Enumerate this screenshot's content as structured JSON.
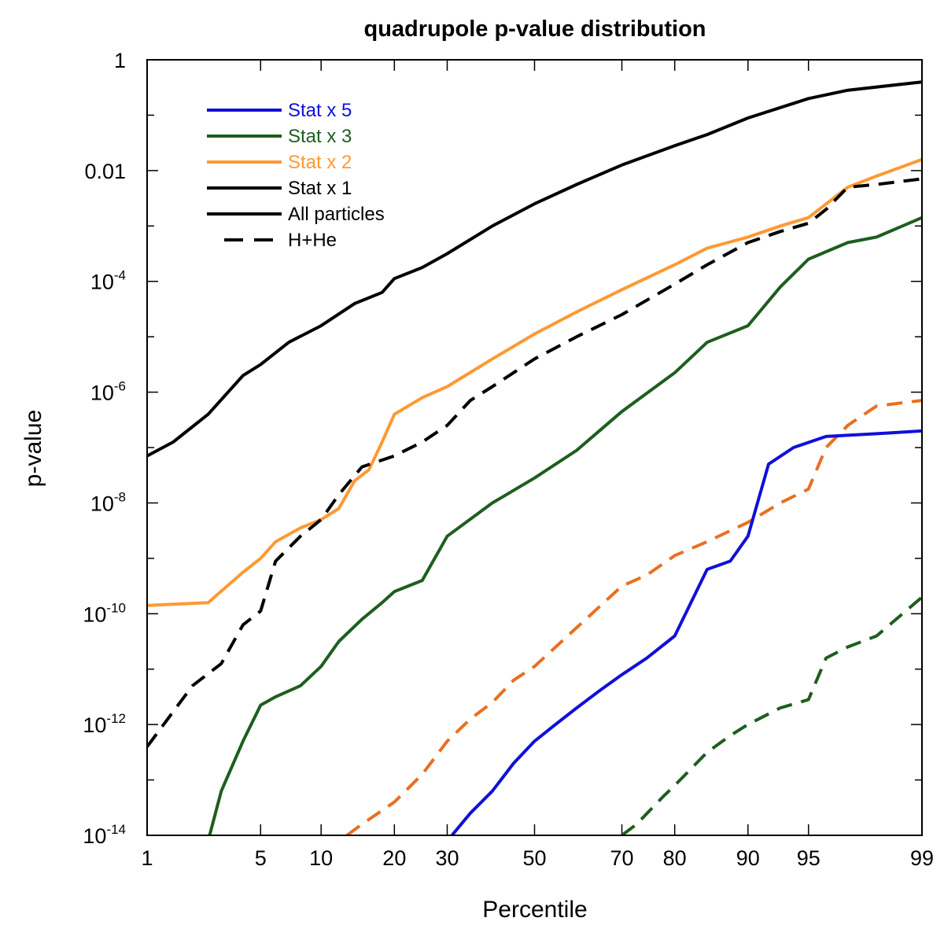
{
  "chart_data": {
    "type": "line",
    "title": "quadrupole p-value distribution",
    "xlabel": "Percentile",
    "ylabel": "p-value",
    "xscale": "normal-probability",
    "yscale": "log",
    "xlim": [
      1,
      99
    ],
    "ylim_log10": [
      -14,
      0
    ],
    "x_ticks": [
      {
        "value": 1,
        "label": "1"
      },
      {
        "value": 5,
        "label": "5"
      },
      {
        "value": 10,
        "label": "10"
      },
      {
        "value": 20,
        "label": "20"
      },
      {
        "value": 30,
        "label": "30"
      },
      {
        "value": 50,
        "label": "50"
      },
      {
        "value": 70,
        "label": "70"
      },
      {
        "value": 80,
        "label": "80"
      },
      {
        "value": 90,
        "label": "90"
      },
      {
        "value": 95,
        "label": "95"
      },
      {
        "value": 99,
        "label": "99"
      }
    ],
    "y_ticks": [
      {
        "log10": 0,
        "base": "1",
        "exp": ""
      },
      {
        "log10": -2,
        "base": "0.01",
        "exp": ""
      },
      {
        "log10": -4,
        "base": "10",
        "exp": "-4"
      },
      {
        "log10": -6,
        "base": "10",
        "exp": "-6"
      },
      {
        "log10": -8,
        "base": "10",
        "exp": "-8"
      },
      {
        "log10": -10,
        "base": "10",
        "exp": "-10"
      },
      {
        "log10": -12,
        "base": "10",
        "exp": "-12"
      },
      {
        "log10": -14,
        "base": "10",
        "exp": "-14"
      }
    ],
    "legend_position": "top-left",
    "legend": [
      {
        "label": "Stat x 5",
        "color": "#1010d8",
        "style": "solid",
        "text_color": "#1010d8"
      },
      {
        "label": "Stat x 3",
        "color": "#1e5e1e",
        "style": "solid",
        "text_color": "#1e5e1e"
      },
      {
        "label": "Stat x 2",
        "color": "#ff9933",
        "style": "solid",
        "text_color": "#ff9933"
      },
      {
        "label": "Stat x 1",
        "color": "#000000",
        "style": "solid",
        "text_color": "#000000"
      },
      {
        "label": "All particles",
        "color": "#000000",
        "style": "solid",
        "text_color": "#000000"
      },
      {
        "label": "H+He",
        "color": "#000000",
        "style": "dashed",
        "text_color": "#000000"
      }
    ],
    "series": [
      {
        "name": "Stat x 1 (All particles)",
        "color": "#000000",
        "style": "solid",
        "points": [
          [
            1,
            -7.15
          ],
          [
            1.5,
            -6.9
          ],
          [
            2.5,
            -6.4
          ],
          [
            4,
            -5.7
          ],
          [
            5,
            -5.5
          ],
          [
            7,
            -5.1
          ],
          [
            10,
            -4.8
          ],
          [
            14,
            -4.4
          ],
          [
            18,
            -4.2
          ],
          [
            20,
            -3.95
          ],
          [
            25,
            -3.75
          ],
          [
            30,
            -3.5
          ],
          [
            40,
            -3.0
          ],
          [
            50,
            -2.6
          ],
          [
            60,
            -2.25
          ],
          [
            70,
            -1.9
          ],
          [
            80,
            -1.55
          ],
          [
            85,
            -1.35
          ],
          [
            90,
            -1.05
          ],
          [
            95,
            -0.7
          ],
          [
            97,
            -0.55
          ],
          [
            99,
            -0.4
          ]
        ]
      },
      {
        "name": "Stat x 2",
        "color": "#ff9933",
        "style": "solid",
        "points": [
          [
            1,
            -9.85
          ],
          [
            2.5,
            -9.8
          ],
          [
            4,
            -9.25
          ],
          [
            5,
            -9.0
          ],
          [
            6,
            -8.7
          ],
          [
            8,
            -8.45
          ],
          [
            10,
            -8.3
          ],
          [
            12,
            -8.1
          ],
          [
            14,
            -7.6
          ],
          [
            16,
            -7.4
          ],
          [
            18,
            -6.9
          ],
          [
            20,
            -6.4
          ],
          [
            25,
            -6.1
          ],
          [
            30,
            -5.9
          ],
          [
            40,
            -5.4
          ],
          [
            50,
            -4.95
          ],
          [
            60,
            -4.55
          ],
          [
            70,
            -4.15
          ],
          [
            80,
            -3.7
          ],
          [
            85,
            -3.4
          ],
          [
            90,
            -3.2
          ],
          [
            93,
            -3.0
          ],
          [
            95,
            -2.85
          ],
          [
            97,
            -2.3
          ],
          [
            98,
            -2.1
          ],
          [
            99,
            -1.8
          ]
        ]
      },
      {
        "name": "H+He (All particles)",
        "color": "#000000",
        "style": "dashed",
        "points": [
          [
            1,
            -12.4
          ],
          [
            2,
            -11.3
          ],
          [
            3,
            -10.9
          ],
          [
            4,
            -10.2
          ],
          [
            5,
            -9.95
          ],
          [
            6,
            -9.05
          ],
          [
            8,
            -8.6
          ],
          [
            10,
            -8.3
          ],
          [
            12,
            -7.85
          ],
          [
            15,
            -7.35
          ],
          [
            20,
            -7.15
          ],
          [
            25,
            -6.9
          ],
          [
            30,
            -6.6
          ],
          [
            35,
            -6.15
          ],
          [
            40,
            -5.9
          ],
          [
            50,
            -5.4
          ],
          [
            60,
            -5.0
          ],
          [
            70,
            -4.6
          ],
          [
            80,
            -4.05
          ],
          [
            85,
            -3.7
          ],
          [
            90,
            -3.3
          ],
          [
            93,
            -3.1
          ],
          [
            95,
            -2.95
          ],
          [
            96,
            -2.7
          ],
          [
            97,
            -2.3
          ],
          [
            98,
            -2.25
          ],
          [
            99,
            -2.15
          ]
        ]
      },
      {
        "name": "Stat x 3",
        "color": "#1e5e1e",
        "style": "solid",
        "points": [
          [
            2.5,
            -14.1
          ],
          [
            3,
            -13.2
          ],
          [
            4,
            -12.3
          ],
          [
            5,
            -11.65
          ],
          [
            6,
            -11.5
          ],
          [
            8,
            -11.3
          ],
          [
            10,
            -10.95
          ],
          [
            12,
            -10.5
          ],
          [
            15,
            -10.1
          ],
          [
            18,
            -9.8
          ],
          [
            20,
            -9.6
          ],
          [
            25,
            -9.4
          ],
          [
            30,
            -8.6
          ],
          [
            40,
            -8.0
          ],
          [
            50,
            -7.55
          ],
          [
            60,
            -7.05
          ],
          [
            70,
            -6.35
          ],
          [
            80,
            -5.65
          ],
          [
            85,
            -5.1
          ],
          [
            90,
            -4.8
          ],
          [
            93,
            -4.1
          ],
          [
            95,
            -3.6
          ],
          [
            97,
            -3.3
          ],
          [
            98,
            -3.2
          ],
          [
            99,
            -2.85
          ]
        ]
      },
      {
        "name": "Stat x 2 (H+He)",
        "color": "#e87020",
        "style": "dashed",
        "points": [
          [
            13,
            -14.0
          ],
          [
            15,
            -13.8
          ],
          [
            20,
            -13.4
          ],
          [
            25,
            -12.9
          ],
          [
            30,
            -12.3
          ],
          [
            35,
            -11.9
          ],
          [
            40,
            -11.6
          ],
          [
            45,
            -11.2
          ],
          [
            50,
            -10.95
          ],
          [
            60,
            -10.25
          ],
          [
            70,
            -9.5
          ],
          [
            75,
            -9.3
          ],
          [
            80,
            -8.95
          ],
          [
            85,
            -8.7
          ],
          [
            90,
            -8.35
          ],
          [
            93,
            -8.0
          ],
          [
            95,
            -7.75
          ],
          [
            96,
            -7.0
          ],
          [
            97,
            -6.6
          ],
          [
            98,
            -6.25
          ],
          [
            99,
            -6.15
          ]
        ]
      },
      {
        "name": "Stat x 5",
        "color": "#1010d8",
        "style": "solid",
        "points": [
          [
            31,
            -14.0
          ],
          [
            35,
            -13.6
          ],
          [
            40,
            -13.2
          ],
          [
            45,
            -12.7
          ],
          [
            50,
            -12.3
          ],
          [
            55,
            -12.0
          ],
          [
            60,
            -11.7
          ],
          [
            65,
            -11.4
          ],
          [
            70,
            -11.1
          ],
          [
            75,
            -10.8
          ],
          [
            80,
            -10.4
          ],
          [
            85,
            -9.2
          ],
          [
            88,
            -9.05
          ],
          [
            90,
            -8.6
          ],
          [
            92,
            -7.3
          ],
          [
            94,
            -7.0
          ],
          [
            96,
            -6.8
          ],
          [
            98,
            -6.75
          ],
          [
            99,
            -6.7
          ]
        ]
      },
      {
        "name": "Stat x 3 (H+He)",
        "color": "#1e5e1e",
        "style": "dashed",
        "points": [
          [
            70,
            -14.0
          ],
          [
            73,
            -13.8
          ],
          [
            78,
            -13.3
          ],
          [
            80,
            -13.1
          ],
          [
            85,
            -12.5
          ],
          [
            88,
            -12.2
          ],
          [
            90,
            -12.0
          ],
          [
            93,
            -11.7
          ],
          [
            95,
            -11.55
          ],
          [
            96,
            -10.8
          ],
          [
            97,
            -10.6
          ],
          [
            98,
            -10.4
          ],
          [
            99,
            -9.7
          ]
        ]
      }
    ]
  }
}
